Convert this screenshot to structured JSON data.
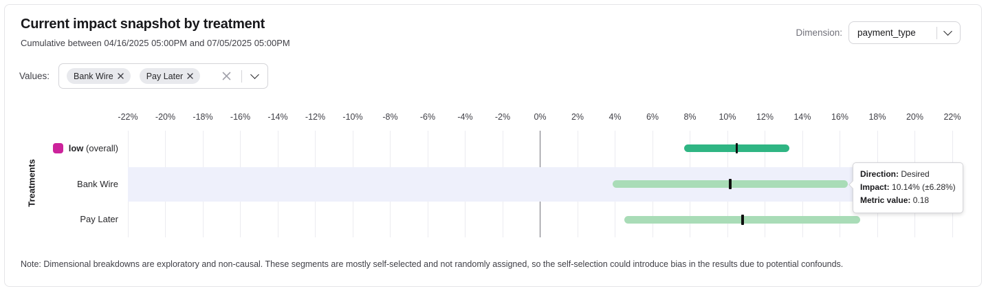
{
  "card": {
    "title": "Current impact snapshot by treatment",
    "subtitle": "Cumulative between 04/16/2025 05:00PM and 07/05/2025 05:00PM",
    "note": "Note: Dimensional breakdowns are exploratory and non-causal. These segments are mostly self-selected and not randomly assigned, so the self-selection could introduce bias in the results due to potential confounds."
  },
  "dimension": {
    "label": "Dimension:",
    "selected": "payment_type"
  },
  "values_filter": {
    "label": "Values:",
    "chips": [
      {
        "label": "Bank Wire"
      },
      {
        "label": "Pay Later"
      }
    ]
  },
  "tooltip": {
    "rows": [
      {
        "label": "Direction:",
        "value": "Desired"
      },
      {
        "label": "Impact:",
        "value": "10.14% (±6.28%)"
      },
      {
        "label": "Metric value:",
        "value": "0.18"
      }
    ]
  },
  "chart_data": {
    "type": "bar",
    "subtype": "horizontal-interval-ranges",
    "title": "Current impact snapshot by treatment",
    "xlabel": "",
    "ylabel": "Treatments",
    "xlim": [
      -22,
      22
    ],
    "tick_step": 2,
    "tick_suffix": "%",
    "grid": true,
    "zero_line": true,
    "rows": [
      {
        "label": "low",
        "label_suffix": "(overall)",
        "impact_pct": 10.5,
        "margin_pct": 2.8,
        "bar_color": "#2fb583",
        "legend_color": "#cc239b",
        "highlighted": false
      },
      {
        "label": "Bank Wire",
        "label_suffix": "",
        "impact_pct": 10.14,
        "margin_pct": 6.28,
        "bar_color": "#a9dcb7",
        "legend_color": null,
        "highlighted": true,
        "direction": "Desired",
        "metric_value": 0.18
      },
      {
        "label": "Pay Later",
        "label_suffix": "",
        "impact_pct": 10.8,
        "margin_pct": 6.3,
        "bar_color": "#a9dcb7",
        "legend_color": null,
        "highlighted": false
      }
    ]
  },
  "colors": {
    "bar_green_dark": "#2fb583",
    "bar_green_light": "#a9dcb7",
    "legend_magenta": "#cc239b",
    "row_highlight": "#eef0fb",
    "median_marker": "#101010"
  }
}
